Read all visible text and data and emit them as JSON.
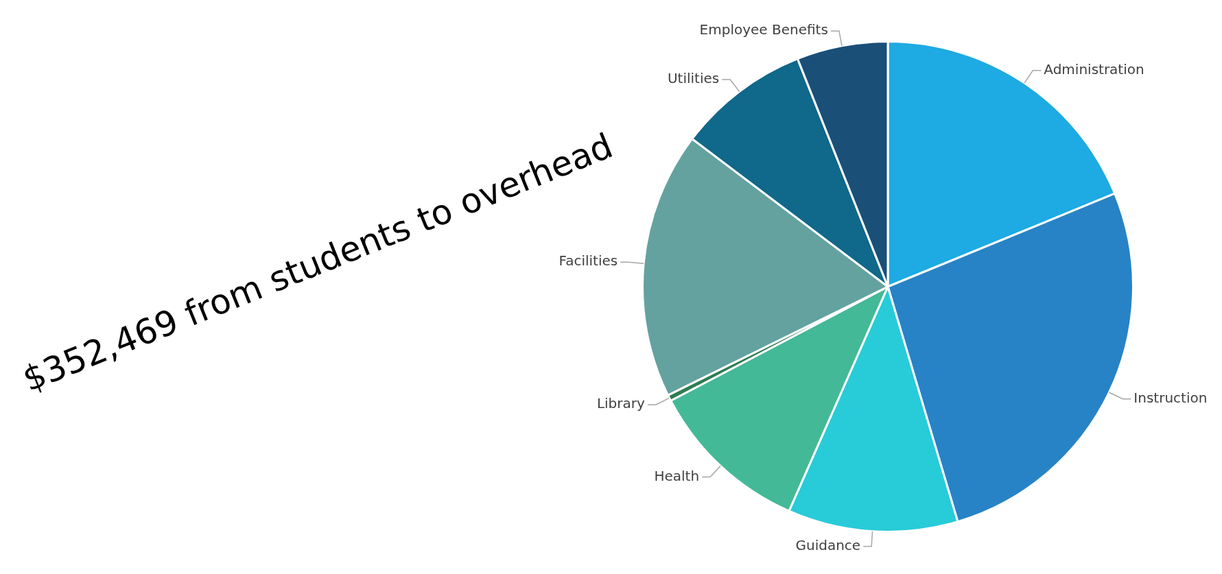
{
  "chart_data": {
    "type": "pie",
    "annotations": [
      "$352,469 from students to overhead"
    ],
    "categories": [
      "Administration",
      "Instruction",
      "Guidance",
      "Health",
      "Library",
      "Facilities",
      "Utilities",
      "Employee Benefits"
    ],
    "values": [
      18.8,
      26.6,
      11.2,
      10.7,
      0.4,
      17.6,
      8.7,
      6.0
    ],
    "colors": [
      "#1eaae2",
      "#2783c6",
      "#28cbd8",
      "#43b997",
      "#2e7d4f",
      "#64a29f",
      "#10688a",
      "#1a4f78"
    ],
    "legend": false
  }
}
